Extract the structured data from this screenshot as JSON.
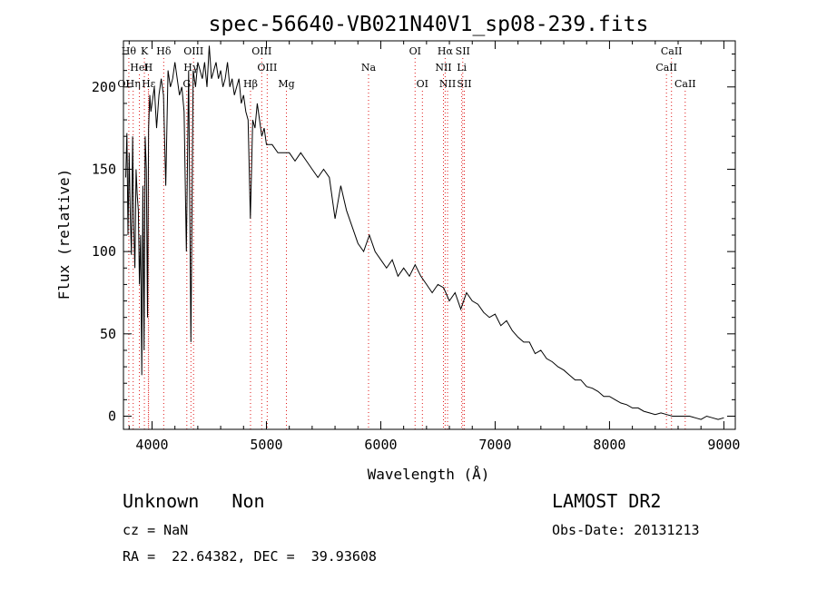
{
  "chart_data": {
    "type": "line",
    "title": "spec-56640-VB021N40V1_sp08-239.fits",
    "xlabel": "Wavelength (Å)",
    "ylabel": "Flux (relative)",
    "xlim": [
      3750,
      9100
    ],
    "ylim": [
      -8,
      228
    ],
    "xticks": [
      4000,
      5000,
      6000,
      7000,
      8000,
      9000
    ],
    "yticks": [
      0,
      50,
      100,
      150,
      200
    ],
    "grid": false,
    "series": [
      {
        "color": "#000000",
        "x": [
          3770,
          3780,
          3790,
          3800,
          3810,
          3820,
          3830,
          3840,
          3850,
          3860,
          3870,
          3880,
          3890,
          3900,
          3910,
          3920,
          3930,
          3940,
          3950,
          3960,
          3970,
          3980,
          3990,
          4000,
          4020,
          4040,
          4060,
          4080,
          4100,
          4120,
          4140,
          4160,
          4180,
          4200,
          4220,
          4240,
          4260,
          4280,
          4300,
          4320,
          4340,
          4360,
          4380,
          4400,
          4420,
          4440,
          4460,
          4480,
          4500,
          4520,
          4540,
          4560,
          4580,
          4600,
          4620,
          4640,
          4660,
          4680,
          4700,
          4720,
          4740,
          4760,
          4780,
          4800,
          4820,
          4840,
          4860,
          4880,
          4900,
          4920,
          4940,
          4960,
          4980,
          5000,
          5050,
          5100,
          5150,
          5200,
          5250,
          5300,
          5350,
          5400,
          5450,
          5500,
          5550,
          5600,
          5650,
          5700,
          5750,
          5800,
          5850,
          5900,
          5950,
          6000,
          6050,
          6100,
          6150,
          6200,
          6250,
          6300,
          6350,
          6400,
          6450,
          6500,
          6550,
          6600,
          6650,
          6700,
          6750,
          6800,
          6850,
          6900,
          6950,
          7000,
          7050,
          7100,
          7150,
          7200,
          7250,
          7300,
          7350,
          7400,
          7450,
          7500,
          7550,
          7600,
          7650,
          7700,
          7750,
          7800,
          7850,
          7900,
          7950,
          8000,
          8050,
          8100,
          8150,
          8200,
          8250,
          8300,
          8350,
          8400,
          8450,
          8500,
          8550,
          8600,
          8650,
          8700,
          8750,
          8800,
          8850,
          8900,
          8950,
          9000
        ],
        "y": [
          145,
          172,
          110,
          160,
          120,
          98,
          170,
          115,
          90,
          150,
          135,
          125,
          80,
          110,
          25,
          140,
          40,
          170,
          150,
          60,
          175,
          195,
          185,
          190,
          200,
          175,
          195,
          205,
          195,
          140,
          210,
          200,
          205,
          215,
          205,
          195,
          200,
          185,
          100,
          210,
          45,
          210,
          200,
          215,
          210,
          205,
          215,
          200,
          225,
          205,
          210,
          215,
          205,
          210,
          200,
          205,
          215,
          200,
          205,
          195,
          200,
          205,
          190,
          195,
          185,
          180,
          120,
          180,
          175,
          190,
          180,
          170,
          175,
          165,
          165,
          160,
          160,
          160,
          155,
          160,
          155,
          150,
          145,
          150,
          145,
          120,
          140,
          125,
          115,
          105,
          100,
          110,
          100,
          95,
          90,
          95,
          85,
          90,
          85,
          92,
          85,
          80,
          75,
          80,
          78,
          70,
          75,
          65,
          75,
          70,
          68,
          63,
          60,
          62,
          55,
          58,
          52,
          48,
          45,
          45,
          38,
          40,
          35,
          33,
          30,
          28,
          25,
          22,
          22,
          18,
          17,
          15,
          12,
          12,
          10,
          8,
          7,
          5,
          5,
          3,
          2,
          1,
          2,
          1,
          0,
          0,
          0,
          0,
          -1,
          -2,
          0,
          -1,
          -2,
          -1
        ]
      }
    ],
    "lines": [
      {
        "name": "Hθ",
        "x": 3797,
        "row": 0
      },
      {
        "name": "K",
        "x": 3933,
        "row": 0
      },
      {
        "name": "Hδ",
        "x": 4102,
        "row": 0
      },
      {
        "name": "OIII",
        "x": 4363,
        "row": 0
      },
      {
        "name": "OIII",
        "x": 4959,
        "row": 0
      },
      {
        "name": "OI",
        "x": 6300,
        "row": 0
      },
      {
        "name": "Hα",
        "x": 6563,
        "row": 0
      },
      {
        "name": "SII",
        "x": 6717,
        "row": 0
      },
      {
        "name": "CaII",
        "x": 8542,
        "row": 0
      },
      {
        "name": "OII",
        "x": 3727,
        "row": 1
      },
      {
        "name": "HeI",
        "x": 3889,
        "row": 1
      },
      {
        "name": "H",
        "x": 3968,
        "row": 1
      },
      {
        "name": "Hγ",
        "x": 4340,
        "row": 1
      },
      {
        "name": "OIII",
        "x": 5007,
        "row": 1
      },
      {
        "name": "Na",
        "x": 5893,
        "row": 1
      },
      {
        "name": "NII",
        "x": 6548,
        "row": 1
      },
      {
        "name": "Li",
        "x": 6708,
        "row": 1
      },
      {
        "name": "CaII",
        "x": 8498,
        "row": 1
      },
      {
        "name": "OI",
        "x": 3750,
        "row": 2
      },
      {
        "name": "Hη",
        "x": 3835,
        "row": 2
      },
      {
        "name": "Hε",
        "x": 3970,
        "row": 2
      },
      {
        "name": "G",
        "x": 4304,
        "row": 2
      },
      {
        "name": "Hβ",
        "x": 4861,
        "row": 2
      },
      {
        "name": "Mg",
        "x": 5175,
        "row": 2
      },
      {
        "name": "OI",
        "x": 6364,
        "row": 2
      },
      {
        "name": "NII",
        "x": 6584,
        "row": 2
      },
      {
        "name": "SII",
        "x": 6731,
        "row": 2
      },
      {
        "name": "CaII",
        "x": 8662,
        "row": 2
      }
    ]
  },
  "info": {
    "class_text": "Unknown   Non",
    "survey": "LAMOST DR2",
    "cz": "cz = NaN",
    "obs_date": "Obs-Date: 20131213",
    "coords": "RA =  22.64382, DEC =  39.93608"
  }
}
